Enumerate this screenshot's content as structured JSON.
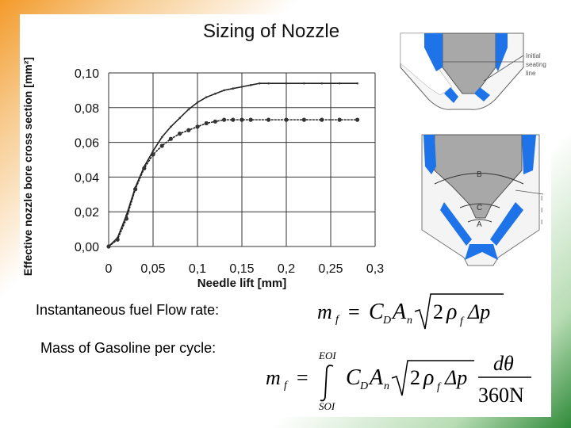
{
  "slide": {
    "title": "Sizing of  Nozzle",
    "label_flow_rate": "Instantaneous fuel Flow rate:",
    "label_mass": "Mass of Gasoline per cycle:"
  },
  "diagram": {
    "top_label": "Initial seating line",
    "section_labels": [
      "B",
      "C",
      "A"
    ]
  },
  "formula1": {
    "lhs": "m",
    "lhs_sub": "f",
    "eq": "=",
    "C": "C",
    "C_sub": "D",
    "A": "A",
    "A_sub": "n",
    "two": "2",
    "rho": "ρ",
    "rho_sub": "f",
    "delta_p": "Δp"
  },
  "formula2": {
    "lhs": "m",
    "lhs_sub": "f",
    "eq": "=",
    "upper": "EOI",
    "lower": "SOI",
    "C": "C",
    "C_sub": "D",
    "A": "A",
    "A_sub": "n",
    "two": "2",
    "rho": "ρ",
    "rho_sub": "f",
    "delta_p": "Δp",
    "num": "dθ",
    "den": "360N"
  },
  "colors": {
    "accent_orange": "#f39a2a",
    "accent_green": "#2f8a3a",
    "nozzle_blue": "#1e73e8",
    "nozzle_gray": "#a8a8a8"
  },
  "chart_data": {
    "type": "line",
    "xlabel": "Needle lift [mm]",
    "ylabel": "Effective nozzle bore cross section [mm²]",
    "xlim": [
      0,
      0.3
    ],
    "ylim": [
      0,
      0.1
    ],
    "x_ticks": [
      "0",
      "0,05",
      "0,1",
      "0,15",
      "0,2",
      "0,25",
      "0,3"
    ],
    "y_ticks": [
      "0,00",
      "0,02",
      "0,04",
      "0,06",
      "0,08",
      "0,10"
    ],
    "grid": true,
    "series": [
      {
        "x": [
          0,
          0.01,
          0.02,
          0.03,
          0.04,
          0.05,
          0.06,
          0.07,
          0.08,
          0.09,
          0.1,
          0.11,
          0.12,
          0.13,
          0.14,
          0.15,
          0.16,
          0.17,
          0.18,
          0.2,
          0.22,
          0.24,
          0.26,
          0.28
        ],
        "y": [
          0,
          0.005,
          0.018,
          0.034,
          0.046,
          0.055,
          0.063,
          0.069,
          0.074,
          0.079,
          0.083,
          0.086,
          0.088,
          0.09,
          0.091,
          0.092,
          0.093,
          0.094,
          0.094,
          0.094,
          0.094,
          0.094,
          0.094,
          0.094
        ]
      },
      {
        "x": [
          0,
          0.01,
          0.02,
          0.03,
          0.04,
          0.05,
          0.06,
          0.07,
          0.08,
          0.09,
          0.1,
          0.11,
          0.12,
          0.13,
          0.14,
          0.15,
          0.16,
          0.18,
          0.2,
          0.22,
          0.24,
          0.26,
          0.28
        ],
        "y": [
          0,
          0.004,
          0.016,
          0.033,
          0.045,
          0.053,
          0.058,
          0.062,
          0.065,
          0.067,
          0.069,
          0.071,
          0.072,
          0.073,
          0.073,
          0.073,
          0.073,
          0.073,
          0.073,
          0.073,
          0.073,
          0.073,
          0.073
        ]
      }
    ]
  }
}
